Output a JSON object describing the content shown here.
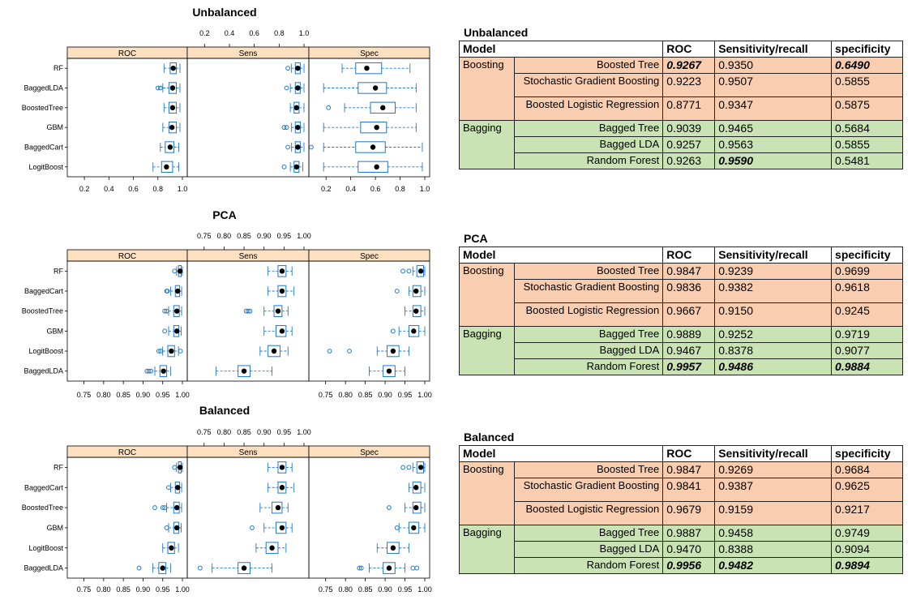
{
  "chart_data": [
    {
      "type": "box",
      "title": "Unbalanced",
      "panels": [
        "ROC",
        "Sens",
        "Spec"
      ],
      "models": [
        "RF",
        "BaggedLDA",
        "BoostedTree",
        "GBM",
        "BaggedCart",
        "LogitBoost"
      ],
      "xlim": [
        0.1,
        1.0
      ],
      "ticks": [
        0.2,
        0.4,
        0.6,
        0.8,
        1.0
      ],
      "tick_labels": [
        "0.2",
        "0.4",
        "0.6",
        "0.8",
        "1.0"
      ],
      "boxes": {
        "ROC": [
          {
            "min": 0.85,
            "q1": 0.9,
            "med": 0.925,
            "q3": 0.95,
            "max": 0.98,
            "out": []
          },
          {
            "min": 0.84,
            "q1": 0.89,
            "med": 0.92,
            "q3": 0.95,
            "max": 0.98,
            "out": [
              0.8,
              0.82
            ]
          },
          {
            "min": 0.85,
            "q1": 0.89,
            "med": 0.92,
            "q3": 0.95,
            "max": 0.98,
            "out": []
          },
          {
            "min": 0.84,
            "q1": 0.89,
            "med": 0.915,
            "q3": 0.95,
            "max": 0.98,
            "out": []
          },
          {
            "min": 0.82,
            "q1": 0.86,
            "med": 0.9,
            "q3": 0.93,
            "max": 0.97,
            "out": []
          },
          {
            "min": 0.76,
            "q1": 0.83,
            "med": 0.87,
            "q3": 0.92,
            "max": 0.97,
            "out": []
          }
        ],
        "Sens": [
          {
            "min": 0.9,
            "q1": 0.93,
            "med": 0.95,
            "q3": 0.97,
            "max": 1.0,
            "out": [
              0.87
            ]
          },
          {
            "min": 0.89,
            "q1": 0.93,
            "med": 0.95,
            "q3": 0.97,
            "max": 1.0,
            "out": [
              0.86
            ]
          },
          {
            "min": 0.89,
            "q1": 0.92,
            "med": 0.94,
            "q3": 0.96,
            "max": 1.0,
            "out": []
          },
          {
            "min": 0.9,
            "q1": 0.93,
            "med": 0.95,
            "q3": 0.97,
            "max": 1.0,
            "out": [
              0.84,
              0.86
            ]
          },
          {
            "min": 0.9,
            "q1": 0.93,
            "med": 0.95,
            "q3": 0.97,
            "max": 1.0,
            "out": [
              0.87
            ]
          },
          {
            "min": 0.89,
            "q1": 0.92,
            "med": 0.94,
            "q3": 0.96,
            "max": 0.99,
            "out": [
              0.84
            ]
          }
        ],
        "Spec": [
          {
            "min": 0.33,
            "q1": 0.44,
            "med": 0.53,
            "q3": 0.65,
            "max": 0.88,
            "out": []
          },
          {
            "min": 0.18,
            "q1": 0.46,
            "med": 0.6,
            "q3": 0.69,
            "max": 0.93,
            "out": []
          },
          {
            "min": 0.35,
            "q1": 0.56,
            "med": 0.66,
            "q3": 0.76,
            "max": 0.93,
            "out": [
              0.22
            ]
          },
          {
            "min": 0.18,
            "q1": 0.48,
            "med": 0.61,
            "q3": 0.69,
            "max": 0.93,
            "out": []
          },
          {
            "min": 0.18,
            "q1": 0.44,
            "med": 0.58,
            "q3": 0.68,
            "max": 0.98,
            "out": [
              0.08
            ]
          },
          {
            "min": 0.18,
            "q1": 0.46,
            "med": 0.61,
            "q3": 0.7,
            "max": 0.98,
            "out": []
          }
        ]
      }
    },
    {
      "type": "box",
      "title": "PCA",
      "panels": [
        "ROC",
        "Sens",
        "Spec"
      ],
      "models": [
        "RF",
        "BaggedCart",
        "BoostedTree",
        "GBM",
        "LogitBoost",
        "BaggedLDA"
      ],
      "xlim": [
        0.72,
        1.0
      ],
      "ticks": [
        0.75,
        0.8,
        0.85,
        0.9,
        0.95,
        1.0
      ],
      "tick_labels": [
        "0.75",
        "0.80",
        "0.85",
        "0.90",
        "0.95",
        "1.00"
      ],
      "boxes": {
        "ROC": [
          {
            "min": 0.985,
            "q1": 0.99,
            "med": 0.994,
            "q3": 0.997,
            "max": 1.0,
            "out": [
              0.98
            ]
          },
          {
            "min": 0.97,
            "q1": 0.982,
            "med": 0.988,
            "q3": 0.993,
            "max": 0.998,
            "out": [
              0.96,
              0.962
            ]
          },
          {
            "min": 0.965,
            "q1": 0.978,
            "med": 0.986,
            "q3": 0.992,
            "max": 0.998,
            "out": [
              0.955,
              0.96
            ]
          },
          {
            "min": 0.965,
            "q1": 0.978,
            "med": 0.986,
            "q3": 0.991,
            "max": 0.997,
            "out": [
              0.955
            ]
          },
          {
            "min": 0.95,
            "q1": 0.963,
            "med": 0.972,
            "q3": 0.98,
            "max": 0.99,
            "out": [
              0.94,
              0.945,
              0.995
            ]
          },
          {
            "min": 0.93,
            "q1": 0.943,
            "med": 0.952,
            "q3": 0.96,
            "max": 0.97,
            "out": [
              0.91,
              0.915,
              0.92
            ]
          }
        ],
        "Sens": [
          {
            "min": 0.91,
            "q1": 0.935,
            "med": 0.945,
            "q3": 0.955,
            "max": 0.97,
            "out": []
          },
          {
            "min": 0.91,
            "q1": 0.935,
            "med": 0.945,
            "q3": 0.955,
            "max": 0.975,
            "out": []
          },
          {
            "min": 0.9,
            "q1": 0.925,
            "med": 0.935,
            "q3": 0.945,
            "max": 0.96,
            "out": [
              0.855,
              0.86,
              0.865
            ]
          },
          {
            "min": 0.9,
            "q1": 0.93,
            "med": 0.945,
            "q3": 0.955,
            "max": 0.97,
            "out": []
          },
          {
            "min": 0.89,
            "q1": 0.91,
            "med": 0.925,
            "q3": 0.94,
            "max": 0.96,
            "out": []
          },
          {
            "min": 0.78,
            "q1": 0.835,
            "med": 0.85,
            "q3": 0.865,
            "max": 0.92,
            "out": []
          }
        ],
        "Spec": [
          {
            "min": 0.97,
            "q1": 0.98,
            "med": 0.99,
            "q3": 0.997,
            "max": 1.0,
            "out": [
              0.945,
              0.96
            ]
          },
          {
            "min": 0.96,
            "q1": 0.97,
            "med": 0.978,
            "q3": 0.99,
            "max": 1.0,
            "out": [
              0.93
            ]
          },
          {
            "min": 0.95,
            "q1": 0.97,
            "med": 0.978,
            "q3": 0.99,
            "max": 1.0,
            "out": []
          },
          {
            "min": 0.935,
            "q1": 0.96,
            "med": 0.972,
            "q3": 0.985,
            "max": 1.0,
            "out": [
              0.92
            ]
          },
          {
            "min": 0.88,
            "q1": 0.905,
            "med": 0.92,
            "q3": 0.935,
            "max": 0.96,
            "out": [
              0.76,
              0.81
            ]
          },
          {
            "min": 0.86,
            "q1": 0.895,
            "med": 0.91,
            "q3": 0.925,
            "max": 0.95,
            "out": []
          }
        ]
      }
    },
    {
      "type": "box",
      "title": "Balanced",
      "panels": [
        "ROC",
        "Sens",
        "Spec"
      ],
      "models": [
        "RF",
        "BaggedCart",
        "BoostedTree",
        "GBM",
        "LogitBoost",
        "BaggedLDA"
      ],
      "xlim": [
        0.72,
        1.0
      ],
      "ticks": [
        0.75,
        0.8,
        0.85,
        0.9,
        0.95,
        1.0
      ],
      "tick_labels": [
        "0.75",
        "0.80",
        "0.85",
        "0.90",
        "0.95",
        "1.00"
      ],
      "boxes": {
        "ROC": [
          {
            "min": 0.985,
            "q1": 0.99,
            "med": 0.994,
            "q3": 0.997,
            "max": 1.0,
            "out": [
              0.98
            ]
          },
          {
            "min": 0.97,
            "q1": 0.982,
            "med": 0.988,
            "q3": 0.993,
            "max": 0.998,
            "out": [
              0.965
            ]
          },
          {
            "min": 0.96,
            "q1": 0.978,
            "med": 0.986,
            "q3": 0.992,
            "max": 0.998,
            "out": [
              0.93,
              0.95,
              0.955
            ]
          },
          {
            "min": 0.965,
            "q1": 0.978,
            "med": 0.986,
            "q3": 0.991,
            "max": 0.997,
            "out": [
              0.96
            ]
          },
          {
            "min": 0.95,
            "q1": 0.963,
            "med": 0.972,
            "q3": 0.98,
            "max": 0.99,
            "out": []
          },
          {
            "min": 0.925,
            "q1": 0.94,
            "med": 0.95,
            "q3": 0.958,
            "max": 0.97,
            "out": [
              0.89
            ]
          }
        ],
        "Sens": [
          {
            "min": 0.91,
            "q1": 0.935,
            "med": 0.945,
            "q3": 0.955,
            "max": 0.97,
            "out": []
          },
          {
            "min": 0.91,
            "q1": 0.935,
            "med": 0.945,
            "q3": 0.955,
            "max": 0.975,
            "out": []
          },
          {
            "min": 0.89,
            "q1": 0.92,
            "med": 0.935,
            "q3": 0.945,
            "max": 0.96,
            "out": []
          },
          {
            "min": 0.9,
            "q1": 0.93,
            "med": 0.945,
            "q3": 0.955,
            "max": 0.97,
            "out": [
              0.87
            ]
          },
          {
            "min": 0.88,
            "q1": 0.905,
            "med": 0.92,
            "q3": 0.935,
            "max": 0.955,
            "out": []
          },
          {
            "min": 0.77,
            "q1": 0.835,
            "med": 0.85,
            "q3": 0.865,
            "max": 0.92,
            "out": [
              0.74
            ]
          }
        ],
        "Spec": [
          {
            "min": 0.97,
            "q1": 0.98,
            "med": 0.99,
            "q3": 0.997,
            "max": 1.0,
            "out": [
              0.945,
              0.96
            ]
          },
          {
            "min": 0.96,
            "q1": 0.97,
            "med": 0.978,
            "q3": 0.99,
            "max": 1.0,
            "out": []
          },
          {
            "min": 0.95,
            "q1": 0.97,
            "med": 0.978,
            "q3": 0.99,
            "max": 1.0,
            "out": [
              0.91
            ]
          },
          {
            "min": 0.935,
            "q1": 0.96,
            "med": 0.972,
            "q3": 0.985,
            "max": 1.0,
            "out": [
              0.93
            ]
          },
          {
            "min": 0.88,
            "q1": 0.905,
            "med": 0.92,
            "q3": 0.935,
            "max": 0.96,
            "out": []
          },
          {
            "min": 0.86,
            "q1": 0.895,
            "med": 0.91,
            "q3": 0.925,
            "max": 0.95,
            "out": [
              0.835,
              0.84,
              0.97,
              0.98
            ]
          }
        ]
      }
    },
    {
      "type": "table",
      "title": "Unbalanced",
      "columns": [
        "Model",
        "ROC",
        "Sensitivity/recall",
        "specificity"
      ],
      "groups": [
        {
          "name": "Boosting",
          "rows": [
            {
              "model": "Boosted Tree",
              "roc": "0.9267",
              "sens": "0.9350",
              "spec": "0.6490",
              "bold": [
                "roc",
                "spec"
              ]
            },
            {
              "model": "Stochastic Gradient Boosting",
              "roc": "0.9223",
              "sens": "0.9507",
              "spec": "0.5855",
              "bold": []
            },
            {
              "model": "Boosted Logistic Regression",
              "roc": "0.8771",
              "sens": "0.9347",
              "spec": "0.5875",
              "bold": []
            }
          ]
        },
        {
          "name": "Bagging",
          "rows": [
            {
              "model": "Bagged Tree",
              "roc": "0.9039",
              "sens": "0.9465",
              "spec": "0.5684",
              "bold": []
            },
            {
              "model": "Bagged LDA",
              "roc": "0.9257",
              "sens": "0.9563",
              "spec": "0.5855",
              "bold": []
            },
            {
              "model": "Random Forest",
              "roc": "0.9263",
              "sens": "0.9590",
              "spec": "0.5481",
              "bold": [
                "sens"
              ]
            }
          ]
        }
      ]
    },
    {
      "type": "table",
      "title": "PCA",
      "columns": [
        "Model",
        "ROC",
        "Sensitivity/recall",
        "specificity"
      ],
      "groups": [
        {
          "name": "Boosting",
          "rows": [
            {
              "model": "Boosted Tree",
              "roc": "0.9847",
              "sens": "0.9239",
              "spec": "0.9699",
              "bold": []
            },
            {
              "model": "Stochastic Gradient Boosting",
              "roc": "0.9836",
              "sens": "0.9382",
              "spec": "0.9618",
              "bold": []
            },
            {
              "model": "Boosted Logistic Regression",
              "roc": "0.9667",
              "sens": "0.9150",
              "spec": "0.9245",
              "bold": []
            }
          ]
        },
        {
          "name": "Bagging",
          "rows": [
            {
              "model": "Bagged Tree",
              "roc": "0.9889",
              "sens": "0.9252",
              "spec": "0.9719",
              "bold": []
            },
            {
              "model": "Bagged LDA",
              "roc": "0.9467",
              "sens": "0.8378",
              "spec": "0.9077",
              "bold": []
            },
            {
              "model": "Random Forest",
              "roc": "0.9957",
              "sens": "0.9486",
              "spec": "0.9884",
              "bold": [
                "roc",
                "sens",
                "spec"
              ]
            }
          ]
        }
      ]
    },
    {
      "type": "table",
      "title": "Balanced",
      "columns": [
        "Model",
        "ROC",
        "Sensitivity/recall",
        "specificity"
      ],
      "groups": [
        {
          "name": "Boosting",
          "rows": [
            {
              "model": "Boosted Tree",
              "roc": "0.9847",
              "sens": "0.9269",
              "spec": "0.9684",
              "bold": []
            },
            {
              "model": "Stochastic Gradient Boosting",
              "roc": "0.9841",
              "sens": "0.9387",
              "spec": "0.9625",
              "bold": []
            },
            {
              "model": "Boosted Logistic Regression",
              "roc": "0.9679",
              "sens": "0.9159",
              "spec": "0.9217",
              "bold": []
            }
          ]
        },
        {
          "name": "Bagging",
          "rows": [
            {
              "model": "Bagged Tree",
              "roc": "0.9887",
              "sens": "0.9458",
              "spec": "0.9749",
              "bold": []
            },
            {
              "model": "Bagged LDA",
              "roc": "0.9470",
              "sens": "0.8388",
              "spec": "0.9094",
              "bold": []
            },
            {
              "model": "Random Forest",
              "roc": "0.9956",
              "sens": "0.9482",
              "spec": "0.9894",
              "bold": [
                "roc",
                "sens",
                "spec"
              ]
            }
          ]
        }
      ]
    }
  ],
  "colors": {
    "strip": "#fde0c0",
    "box": "#1f77d0",
    "boosting": "#f9cdb0",
    "bagging": "#c9e3b4"
  }
}
